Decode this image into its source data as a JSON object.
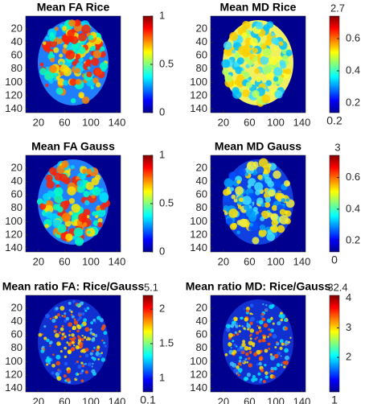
{
  "panels": [
    {
      "title": "Mean FA Rice",
      "xlim": [
        0.5,
        145.5
      ],
      "ylim": [
        0.5,
        145.5
      ],
      "xticks": [
        20,
        60,
        100,
        140
      ],
      "yticks": [
        20,
        40,
        60,
        80,
        100,
        120,
        140
      ],
      "colorbar": {
        "lim": [
          0,
          1
        ],
        "ticks": [
          0,
          0.5,
          1
        ]
      }
    },
    {
      "title": "Mean MD Rice",
      "xlim": [
        0.5,
        145.5
      ],
      "ylim": [
        0.5,
        145.5
      ],
      "xticks": [
        20,
        60,
        100,
        140
      ],
      "yticks": [
        20,
        40,
        60,
        80,
        100,
        120,
        140
      ],
      "colorbar": {
        "lim": [
          0.14,
          0.74
        ],
        "ticks": [
          0.2,
          0.4,
          0.6
        ],
        "top_label": "2.7",
        "bottom_label": "0.2"
      }
    },
    {
      "title": "Mean FA Gauss",
      "xlim": [
        0.5,
        145.5
      ],
      "ylim": [
        0.5,
        145.5
      ],
      "xticks": [
        20,
        60,
        100,
        140
      ],
      "yticks": [
        20,
        40,
        60,
        80,
        100,
        120,
        140
      ],
      "colorbar": {
        "lim": [
          0,
          1
        ],
        "ticks": [
          0,
          0.5,
          1
        ]
      }
    },
    {
      "title": "Mean MD Gauss",
      "xlim": [
        0.5,
        145.5
      ],
      "ylim": [
        0.5,
        145.5
      ],
      "xticks": [
        20,
        60,
        100,
        140
      ],
      "yticks": [
        20,
        40,
        60,
        80,
        100,
        120,
        140
      ],
      "colorbar": {
        "lim": [
          0.13,
          0.74
        ],
        "ticks": [
          0.2,
          0.4,
          0.6
        ],
        "top_label": "3",
        "bottom_label": "0"
      }
    },
    {
      "title": "Mean ratio FA: Rice/Gauss",
      "xlim": [
        0.5,
        145.5
      ],
      "ylim": [
        0.5,
        145.5
      ],
      "xticks": [
        20,
        60,
        100,
        140
      ],
      "yticks": [
        20,
        40,
        60,
        80,
        100,
        120,
        140
      ],
      "colorbar": {
        "lim": [
          0.8,
          2.2
        ],
        "ticks": [
          1,
          1.5,
          2
        ],
        "top_label": "5.1",
        "bottom_label": "0.1"
      }
    },
    {
      "title": "Mean ratio MD: Rice/Gauss",
      "xlim": [
        0.5,
        145.5
      ],
      "ylim": [
        0.5,
        145.5
      ],
      "xticks": [
        20,
        60,
        100,
        140
      ],
      "yticks": [
        20,
        40,
        60,
        80,
        100,
        120,
        140
      ],
      "colorbar": {
        "lim": [
          0.83,
          4.1
        ],
        "ticks": [
          2,
          3,
          4
        ],
        "top_label": "32.4",
        "bottom_label": "1"
      }
    }
  ]
}
